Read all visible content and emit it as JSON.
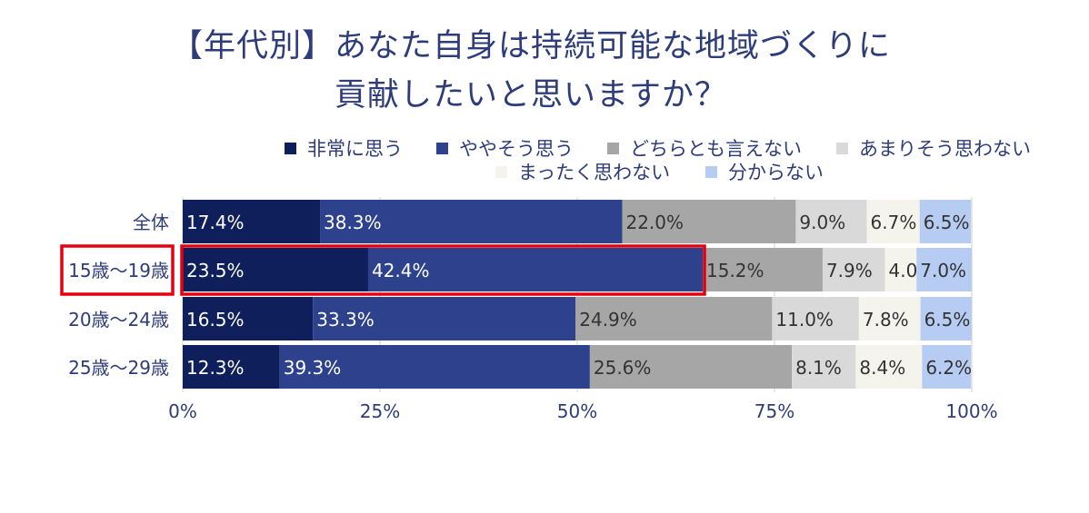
{
  "title": {
    "line1": "【年代別】あなた自身は持続可能な地域づくりに",
    "line2": "貢献したいと思いますか？"
  },
  "colors": {
    "series": [
      "#0F1F5C",
      "#2E418C",
      "#A6A6A6",
      "#D9D9D9",
      "#F4F4EC",
      "#B7CCF2"
    ],
    "highlight": "#E4000F",
    "text": "#2E3D7A"
  },
  "chart_data": {
    "type": "bar",
    "orientation": "horizontal",
    "stacked": true,
    "categories": [
      "全体",
      "15歳〜19歳",
      "20歳〜24歳",
      "25歳〜29歳"
    ],
    "series": [
      {
        "name": "非常に思う",
        "values": [
          17.4,
          23.5,
          16.5,
          12.3
        ],
        "labels": [
          "17.4%",
          "23.5%",
          "16.5%",
          "12.3%"
        ]
      },
      {
        "name": "ややそう思う",
        "values": [
          38.3,
          42.4,
          33.3,
          39.3
        ],
        "labels": [
          "38.3%",
          "42.4%",
          "33.3%",
          "39.3%"
        ]
      },
      {
        "name": "どちらとも言えない",
        "values": [
          22.0,
          15.2,
          24.9,
          25.6
        ],
        "labels": [
          "22.0%",
          "15.2%",
          "24.9%",
          "25.6%"
        ]
      },
      {
        "name": "あまりそう思わない",
        "values": [
          9.0,
          7.9,
          11.0,
          8.1
        ],
        "labels": [
          "9.0%",
          "7.9%",
          "11.0%",
          "8.1%"
        ]
      },
      {
        "name": "まったく思わない",
        "values": [
          6.7,
          4.0,
          7.8,
          8.4
        ],
        "labels": [
          "6.7%",
          "4.0%",
          "7.8%",
          "8.4%"
        ]
      },
      {
        "name": "分からない",
        "values": [
          6.5,
          7.0,
          6.5,
          6.2
        ],
        "labels": [
          "6.5%",
          "7.0%",
          "6.5%",
          "6.2%"
        ]
      }
    ],
    "x_ticks": [
      "0%",
      "25%",
      "50%",
      "75%",
      "100%"
    ],
    "xlim": [
      0,
      100
    ],
    "legend_position": "top",
    "highlighted_category": "15歳〜19歳",
    "highlighted_series": [
      "非常に思う",
      "ややそう思う"
    ]
  }
}
